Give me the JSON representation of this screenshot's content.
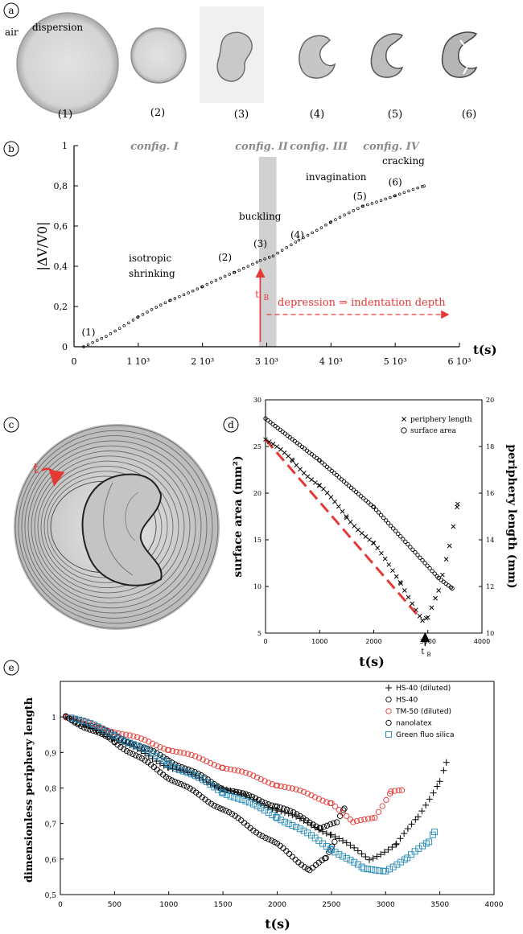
{
  "panel_labels": {
    "a": "a",
    "b": "b",
    "c": "c",
    "d": "d",
    "e": "e"
  },
  "panel_a": {
    "air_label": "air",
    "dispersion_label": "dispersion",
    "stage_labels": [
      "(1)",
      "(2)",
      "(3)",
      "(4)",
      "(5)",
      "(6)"
    ]
  },
  "panel_c": {
    "time_arrow_label": "t"
  },
  "chart_data": [
    {
      "id": "b",
      "type": "scatter",
      "title": "",
      "ylabel": "|ΔV/V0|",
      "xlabel": "t(s)",
      "xlim": [
        0,
        6000
      ],
      "ylim": [
        0,
        1
      ],
      "x_ticks": [
        0,
        1000,
        2000,
        3000,
        4000,
        5000,
        6000
      ],
      "x_tick_labels": [
        "0",
        "1 10³",
        "2 10³",
        "3 10³",
        "4 10³",
        "5 10³",
        "6 10³"
      ],
      "y_ticks": [
        0,
        0.2,
        0.4,
        0.6,
        0.8,
        1
      ],
      "y_tick_labels": [
        "0",
        "0,2",
        "0,4",
        "0,6",
        "0,8",
        "1"
      ],
      "configs": [
        "config. I",
        "config. II",
        "config. III",
        "config. IV"
      ],
      "annotations": [
        "isotropic shrinking",
        "buckling",
        "invagination",
        "cracking",
        "depression ⇒ indentation depth",
        "t",
        "B"
      ],
      "stage_points": [
        {
          "label": "(1)",
          "x": 100,
          "y": 0.0
        },
        {
          "label": "(2)",
          "x": 2500,
          "y": 0.38
        },
        {
          "label": "(3)",
          "x": 2950,
          "y": 0.44
        },
        {
          "label": "(4)",
          "x": 3350,
          "y": 0.5
        },
        {
          "label": "(5)",
          "x": 4550,
          "y": 0.7
        },
        {
          "label": "(6)",
          "x": 5100,
          "y": 0.77
        }
      ],
      "shaded_band_x": [
        2880,
        3150
      ],
      "tB": 2900,
      "series": [
        {
          "name": "volume change",
          "curve": [
            [
              150,
              0.0
            ],
            [
              500,
              0.05
            ],
            [
              1000,
              0.15
            ],
            [
              1500,
              0.23
            ],
            [
              2000,
              0.3
            ],
            [
              2500,
              0.37
            ],
            [
              2900,
              0.43
            ],
            [
              3100,
              0.45
            ],
            [
              3500,
              0.53
            ],
            [
              4000,
              0.62
            ],
            [
              4500,
              0.7
            ],
            [
              5000,
              0.75
            ],
            [
              5450,
              0.8
            ]
          ],
          "step": 70
        }
      ]
    },
    {
      "id": "d",
      "type": "scatter",
      "title": "",
      "xlabel": "t(s)",
      "ylabel": "surface area (mm²)",
      "ylabel_right": "periphery length (mm)",
      "xlim": [
        0,
        4000
      ],
      "ylim": [
        5,
        30
      ],
      "ylim_right": [
        10,
        20
      ],
      "x_ticks": [
        0,
        1000,
        2000,
        3000,
        4000
      ],
      "x_tick_labels": [
        "0",
        "1000",
        "2000",
        "3000",
        "4000"
      ],
      "y_ticks": [
        5,
        10,
        15,
        20,
        25,
        30
      ],
      "y_tick_labels": [
        "5",
        "10",
        "15",
        "20",
        "25",
        "30"
      ],
      "y2_ticks": [
        10,
        12,
        14,
        16,
        18,
        20
      ],
      "y2_tick_labels": [
        "10",
        "12",
        "14",
        "16",
        "18",
        "20"
      ],
      "tB_label": "t",
      "tB_sub": "B",
      "tB": 2950,
      "legend": [
        "periphery length",
        "surface area"
      ],
      "series": [
        {
          "name": "surface area",
          "marker": "circle",
          "axis": "left",
          "curve": [
            [
              0,
              28
            ],
            [
              1000,
              23.5
            ],
            [
              2000,
              18.5
            ],
            [
              2900,
              12.8
            ],
            [
              3200,
              10.9
            ],
            [
              3450,
              9.8
            ]
          ],
          "step": 45
        },
        {
          "name": "periphery length",
          "marker": "x",
          "axis": "right",
          "curve": [
            [
              0,
              18.3
            ],
            [
              500,
              17.4
            ],
            [
              1000,
              16.3
            ],
            [
              1500,
              15.0
            ],
            [
              2000,
              13.8
            ],
            [
              2500,
              12.2
            ],
            [
              2900,
              10.5
            ],
            [
              3000,
              10.6
            ],
            [
              3200,
              11.8
            ],
            [
              3400,
              13.8
            ],
            [
              3550,
              15.6
            ]
          ],
          "step": 70
        }
      ],
      "fit_line": {
        "name": "fit",
        "color": "#e53935",
        "points": [
          [
            0,
            18.3
          ],
          [
            2800,
            10.8
          ]
        ]
      }
    },
    {
      "id": "e",
      "type": "scatter",
      "title": "",
      "xlabel": "t(s)",
      "ylabel": "dimensionless periphery length",
      "xlim": [
        0,
        4000
      ],
      "ylim": [
        0.5,
        1.1
      ],
      "x_ticks": [
        0,
        500,
        1000,
        1500,
        2000,
        2500,
        3000,
        3500,
        4000
      ],
      "x_tick_labels": [
        "0",
        "500",
        "1000",
        "1500",
        "2000",
        "2500",
        "3000",
        "3500",
        "4000"
      ],
      "y_ticks": [
        0.5,
        0.6,
        0.7,
        0.8,
        0.9,
        1
      ],
      "y_tick_labels": [
        "0,5",
        "0,6",
        "0,7",
        "0,8",
        "0,9",
        "1"
      ],
      "legend": [
        "HS-40 (diluted)",
        "HS-40",
        "TM-50 (diluted)",
        "nanolatex",
        "Green fluo silica"
      ],
      "series": [
        {
          "name": "HS-40 (diluted)",
          "marker": "plus",
          "color": "#000000",
          "curve": [
            [
              50,
              1.0
            ],
            [
              500,
              0.94
            ],
            [
              1000,
              0.86
            ],
            [
              1500,
              0.8
            ],
            [
              2000,
              0.74
            ],
            [
              2500,
              0.67
            ],
            [
              2850,
              0.6
            ],
            [
              3100,
              0.64
            ],
            [
              3300,
              0.72
            ],
            [
              3500,
              0.82
            ],
            [
              3560,
              0.87
            ]
          ],
          "step": 35
        },
        {
          "name": "HS-40",
          "marker": "circle",
          "color": "#000000",
          "curve": [
            [
              50,
              1.0
            ],
            [
              500,
              0.95
            ],
            [
              1000,
              0.88
            ],
            [
              1500,
              0.8
            ],
            [
              2000,
              0.75
            ],
            [
              2400,
              0.69
            ],
            [
              2550,
              0.7
            ],
            [
              2620,
              0.74
            ]
          ],
          "step": 30
        },
        {
          "name": "TM-50 (diluted)",
          "marker": "circle",
          "color": "#e53935",
          "curve": [
            [
              50,
              1.0
            ],
            [
              500,
              0.96
            ],
            [
              1000,
              0.91
            ],
            [
              1500,
              0.86
            ],
            [
              2000,
              0.81
            ],
            [
              2500,
              0.76
            ],
            [
              2700,
              0.7
            ],
            [
              2900,
              0.72
            ],
            [
              3050,
              0.79
            ],
            [
              3150,
              0.79
            ]
          ],
          "step": 35
        },
        {
          "name": "nanolatex",
          "marker": "circle",
          "color": "#000000",
          "curve": [
            [
              50,
              1.0
            ],
            [
              500,
              0.93
            ],
            [
              1000,
              0.83
            ],
            [
              1500,
              0.74
            ],
            [
              2000,
              0.64
            ],
            [
              2300,
              0.57
            ],
            [
              2450,
              0.6
            ],
            [
              2530,
              0.65
            ]
          ],
          "step": 28
        },
        {
          "name": "Green fluo silica",
          "marker": "square",
          "color": "#1f86b5",
          "curve": [
            [
              100,
              1.0
            ],
            [
              500,
              0.95
            ],
            [
              1000,
              0.87
            ],
            [
              1500,
              0.79
            ],
            [
              2000,
              0.72
            ],
            [
              2500,
              0.63
            ],
            [
              2800,
              0.57
            ],
            [
              3000,
              0.57
            ],
            [
              3200,
              0.6
            ],
            [
              3400,
              0.65
            ],
            [
              3450,
              0.68
            ]
          ],
          "step": 35
        }
      ]
    }
  ]
}
